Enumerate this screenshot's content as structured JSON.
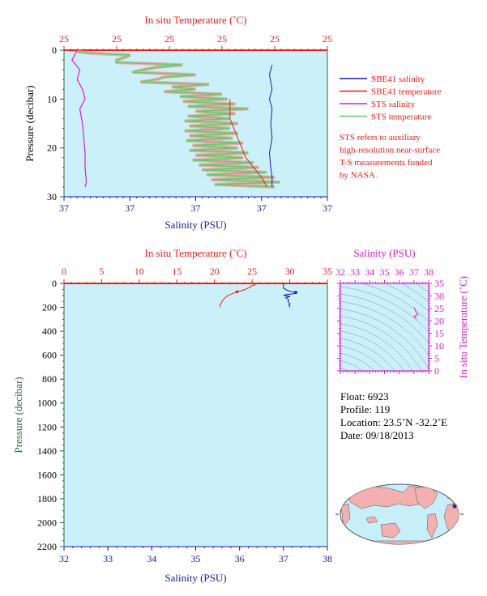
{
  "chart_data": [
    {
      "type": "line",
      "panel": "near-surface profile",
      "top_axis": {
        "label": "In situ Temperature (˚C)",
        "tick_labels": [
          "25",
          "25",
          "25",
          "25",
          "25",
          "25"
        ]
      },
      "bottom_axis": {
        "label": "Salinity (PSU)",
        "tick_labels": [
          "37",
          "37",
          "37",
          "37",
          "37"
        ]
      },
      "ylabel": "Pressure (decibar)",
      "ylim": [
        30,
        0
      ],
      "y_ticks": [
        0,
        10,
        20,
        30
      ],
      "grid": false,
      "legend_position": "right",
      "legend": [
        {
          "name": "SBE41 salinity",
          "color": "#1a1aa8"
        },
        {
          "name": "SBE41 temperature",
          "color": "#e8201a"
        },
        {
          "name": "STS salinity",
          "color": "#d620c8"
        },
        {
          "name": "STS temperature",
          "color": "#6cc86c"
        }
      ],
      "note": [
        "STS refers to auxiliary",
        "high-resolution near-surface",
        "T-S measurements funded",
        "by NASA."
      ],
      "series": [
        {
          "name": "SBE41 salinity",
          "color": "#1a1aa8",
          "note": "x in plot fraction",
          "pressure": [
            3,
            5,
            8,
            10,
            12,
            15,
            18,
            21,
            24,
            26,
            28
          ],
          "x": [
            0.79,
            0.78,
            0.79,
            0.78,
            0.79,
            0.785,
            0.79,
            0.78,
            0.785,
            0.79,
            0.79
          ]
        },
        {
          "name": "SBE41 temperature",
          "color": "#e8201a",
          "note": "x in plot fraction",
          "pressure": [
            10,
            12,
            14,
            18,
            22,
            24,
            26,
            28
          ],
          "x": [
            0.63,
            0.63,
            0.63,
            0.66,
            0.69,
            0.72,
            0.75,
            0.77
          ]
        },
        {
          "name": "STS salinity",
          "color": "#d620c8",
          "note": "x in plot fraction",
          "pressure": [
            0,
            2,
            4,
            6,
            8,
            10,
            12,
            15,
            18,
            21,
            24,
            27,
            28
          ],
          "x": [
            0.05,
            0.03,
            0.06,
            0.05,
            0.07,
            0.08,
            0.06,
            0.07,
            0.075,
            0.08,
            0.08,
            0.085,
            0.08
          ]
        },
        {
          "name": "STS temperature",
          "color": "#6cc86c",
          "note": "x in plot fraction",
          "pressure": [
            0.3,
            1,
            2,
            3,
            4,
            5,
            6,
            7,
            8,
            9,
            10,
            11,
            12,
            13,
            14,
            15,
            16,
            17,
            18,
            19,
            20,
            21,
            22,
            23,
            24,
            25,
            26,
            27,
            28
          ],
          "x": [
            0.05,
            0.25,
            0.2,
            0.45,
            0.3,
            0.5,
            0.35,
            0.55,
            0.5,
            0.6,
            0.62,
            0.65,
            0.7,
            0.65,
            0.63,
            0.66,
            0.63,
            0.66,
            0.64,
            0.68,
            0.66,
            0.7,
            0.68,
            0.72,
            0.74,
            0.77,
            0.8,
            0.82,
            0.8
          ]
        }
      ]
    },
    {
      "type": "line",
      "panel": "full-depth profile",
      "top_axis": {
        "label": "In situ Temperature (˚C)",
        "ticks": [
          0,
          5,
          10,
          15,
          20,
          25,
          30,
          35
        ],
        "range": [
          0,
          35
        ]
      },
      "bottom_axis": {
        "label": "Salinity (PSU)",
        "ticks": [
          32,
          33,
          34,
          35,
          36,
          37,
          38
        ],
        "range": [
          32,
          38
        ]
      },
      "ylabel": "Pressure (decibar)",
      "ylim": [
        2200,
        0
      ],
      "y_ticks": [
        0,
        200,
        400,
        600,
        800,
        1000,
        1200,
        1400,
        1600,
        1800,
        2000,
        2200
      ],
      "grid": false,
      "series": [
        {
          "name": "temperature",
          "color": "#e8201a",
          "pressure": [
            0,
            10,
            20,
            35,
            50,
            60,
            70,
            80,
            90,
            100,
            120,
            150,
            180,
            200
          ],
          "values": [
            25.4,
            25.4,
            25.0,
            24.6,
            24.1,
            23.6,
            23.0,
            22.6,
            22.2,
            21.8,
            21.4,
            21.0,
            20.8,
            20.7
          ]
        },
        {
          "name": "salinity",
          "color": "#1a1aa8",
          "pressure": [
            0,
            10,
            20,
            40,
            50,
            60,
            70,
            75,
            80,
            85,
            90,
            95,
            100,
            105,
            110,
            115,
            120,
            130,
            140,
            150,
            160,
            170,
            180,
            190,
            200
          ],
          "values": [
            37.0,
            37.0,
            37.0,
            37.0,
            37.05,
            37.1,
            37.2,
            37.28,
            37.3,
            37.25,
            37.15,
            37.05,
            37.0,
            37.1,
            37.15,
            37.08,
            37.05,
            37.1,
            37.12,
            37.1,
            37.12,
            37.15,
            37.12,
            37.14,
            37.15
          ]
        }
      ]
    },
    {
      "type": "scatter",
      "panel": "T-S diagram",
      "top_axis": {
        "label": "Salinity (PSU)",
        "ticks": [
          32,
          33,
          34,
          35,
          36,
          37,
          38
        ],
        "range": [
          32,
          38
        ]
      },
      "right_axis": {
        "label": "In situ Temperature (˚C)",
        "ticks": [
          0,
          5,
          10,
          15,
          20,
          25,
          30,
          35
        ],
        "range": [
          0,
          35
        ]
      },
      "grid": false,
      "series": [
        {
          "name": "T-S profile",
          "color": "#d620c8",
          "salinity": [
            37.0,
            37.05,
            37.1,
            37.2,
            37.28,
            37.15,
            37.0,
            37.1,
            37.12,
            37.15
          ],
          "temperature": [
            25.4,
            25.0,
            24.1,
            23.0,
            22.6,
            22.2,
            21.8,
            21.4,
            21.0,
            20.7
          ]
        }
      ]
    },
    {
      "type": "map",
      "panel": "float location map",
      "marker": {
        "lat": 23.5,
        "lon": -32.2,
        "symbol": "star",
        "color": "#1a1aa8"
      }
    }
  ],
  "info": {
    "float": "Float:  6923",
    "profile": "Profile:  119",
    "location": "Location:  23.5˚N  -32.2˚E",
    "date": "Date:  09/18/2013"
  },
  "colors": {
    "plot_bg": "#ccf0fa",
    "temperature_axis": "#e8201a",
    "salinity_axis": "#1a1aa8",
    "pressure_axis": "#2e6a3c",
    "ts_axis": "#d620c8",
    "map_land": "#f2b0b0",
    "map_ocean": "#c8eef8"
  }
}
